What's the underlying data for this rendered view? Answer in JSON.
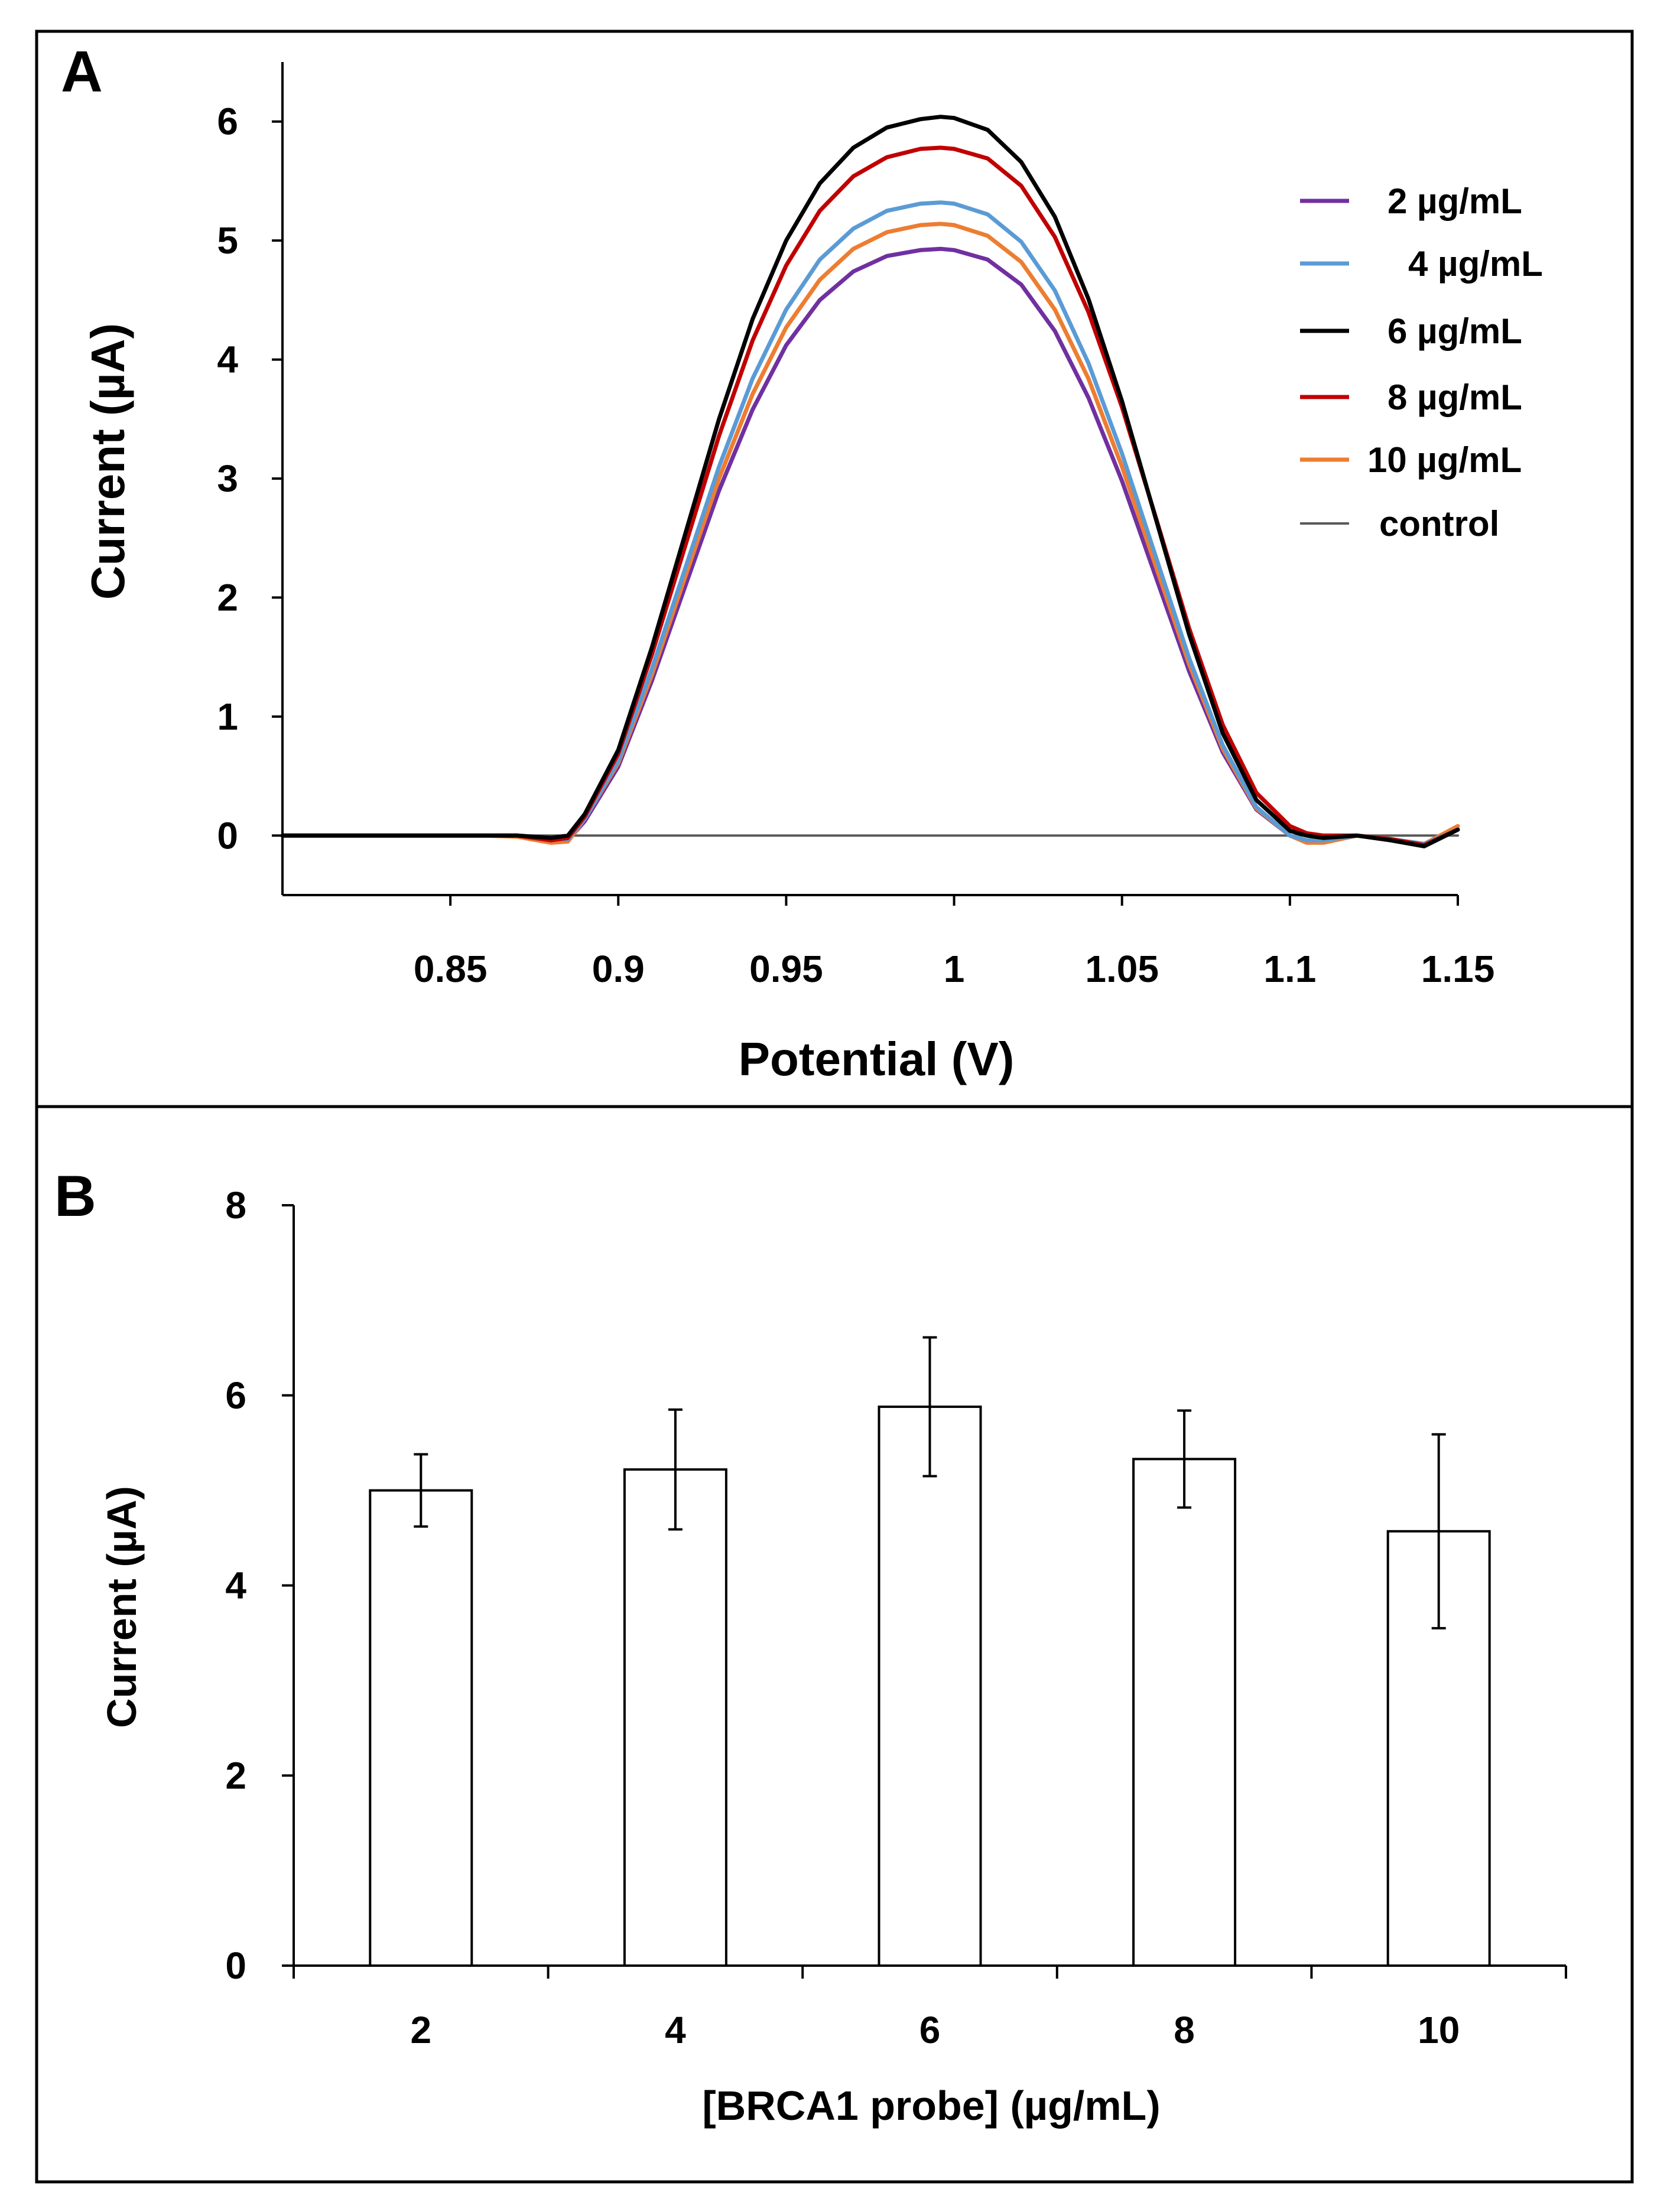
{
  "panel_labels": {
    "a": "A",
    "b": "B"
  },
  "colors": {
    "s2": "#7030a0",
    "s4": "#5b9bd5",
    "s6": "#000000",
    "s8": "#c00000",
    "s10": "#ed7d31",
    "control": "#595959"
  },
  "chart_data": [
    {
      "type": "line",
      "panel": "A",
      "title": "",
      "xlabel": "Potential (V)",
      "ylabel": "Current (µA)",
      "xlim": [
        0.8,
        1.15
      ],
      "ylim": [
        -0.5,
        6.5
      ],
      "xticks": [
        0.85,
        0.9,
        0.95,
        1,
        1.05,
        1.1,
        1.15
      ],
      "xtick_labels": [
        "0.85",
        "0.9",
        "0.95",
        "1",
        "1.05",
        "1.1",
        "1.15"
      ],
      "yticks": [
        0,
        1,
        2,
        3,
        4,
        5,
        6
      ],
      "ytick_labels": [
        "0",
        "1",
        "2",
        "3",
        "4",
        "5",
        "6"
      ],
      "legend_position": "top-right",
      "series": [
        {
          "name": "2 µg/mL",
          "color_key": "s2",
          "peak": 4.93,
          "center": 0.996,
          "points": [
            [
              0.8,
              0
            ],
            [
              0.86,
              0
            ],
            [
              0.87,
              0
            ],
            [
              0.88,
              -0.05
            ],
            [
              0.885,
              -0.04
            ],
            [
              0.89,
              0.12
            ],
            [
              0.9,
              0.58
            ],
            [
              0.91,
              1.3
            ],
            [
              0.92,
              2.1
            ],
            [
              0.93,
              2.9
            ],
            [
              0.94,
              3.58
            ],
            [
              0.95,
              4.12
            ],
            [
              0.96,
              4.5
            ],
            [
              0.97,
              4.74
            ],
            [
              0.98,
              4.87
            ],
            [
              0.99,
              4.92
            ],
            [
              0.996,
              4.93
            ],
            [
              1.0,
              4.92
            ],
            [
              1.01,
              4.84
            ],
            [
              1.02,
              4.63
            ],
            [
              1.03,
              4.24
            ],
            [
              1.04,
              3.68
            ],
            [
              1.05,
              2.98
            ],
            [
              1.06,
              2.18
            ],
            [
              1.07,
              1.38
            ],
            [
              1.08,
              0.7
            ],
            [
              1.09,
              0.22
            ],
            [
              1.1,
              0.0
            ],
            [
              1.105,
              -0.05
            ],
            [
              1.11,
              -0.05
            ],
            [
              1.12,
              0.0
            ],
            [
              1.13,
              -0.03
            ],
            [
              1.14,
              -0.08
            ],
            [
              1.15,
              0.05
            ]
          ]
        },
        {
          "name": "4 µg/mL",
          "color_key": "s4",
          "peak": 5.32,
          "center": 0.996,
          "points": [
            [
              0.8,
              0
            ],
            [
              0.86,
              0
            ],
            [
              0.87,
              0
            ],
            [
              0.88,
              -0.04
            ],
            [
              0.885,
              -0.03
            ],
            [
              0.89,
              0.14
            ],
            [
              0.9,
              0.63
            ],
            [
              0.91,
              1.4
            ],
            [
              0.92,
              2.25
            ],
            [
              0.93,
              3.1
            ],
            [
              0.94,
              3.84
            ],
            [
              0.95,
              4.42
            ],
            [
              0.96,
              4.84
            ],
            [
              0.97,
              5.1
            ],
            [
              0.98,
              5.25
            ],
            [
              0.99,
              5.31
            ],
            [
              0.996,
              5.32
            ],
            [
              1.0,
              5.31
            ],
            [
              1.01,
              5.22
            ],
            [
              1.02,
              4.99
            ],
            [
              1.03,
              4.58
            ],
            [
              1.04,
              3.97
            ],
            [
              1.05,
              3.21
            ],
            [
              1.06,
              2.35
            ],
            [
              1.07,
              1.49
            ],
            [
              1.08,
              0.76
            ],
            [
              1.09,
              0.24
            ],
            [
              1.1,
              0.0
            ],
            [
              1.105,
              -0.04
            ],
            [
              1.11,
              -0.04
            ],
            [
              1.12,
              0.0
            ],
            [
              1.13,
              -0.03
            ],
            [
              1.14,
              -0.07
            ],
            [
              1.15,
              0.05
            ]
          ]
        },
        {
          "name": "6 µg/mL",
          "color_key": "s6",
          "peak": 6.04,
          "center": 0.996,
          "points": [
            [
              0.8,
              0
            ],
            [
              0.86,
              0
            ],
            [
              0.87,
              0
            ],
            [
              0.88,
              -0.02
            ],
            [
              0.885,
              0.0
            ],
            [
              0.89,
              0.18
            ],
            [
              0.9,
              0.72
            ],
            [
              0.91,
              1.58
            ],
            [
              0.92,
              2.54
            ],
            [
              0.93,
              3.5
            ],
            [
              0.94,
              4.34
            ],
            [
              0.95,
              5.0
            ],
            [
              0.96,
              5.48
            ],
            [
              0.97,
              5.78
            ],
            [
              0.98,
              5.95
            ],
            [
              0.99,
              6.02
            ],
            [
              0.996,
              6.04
            ],
            [
              1.0,
              6.03
            ],
            [
              1.01,
              5.93
            ],
            [
              1.02,
              5.66
            ],
            [
              1.03,
              5.2
            ],
            [
              1.04,
              4.51
            ],
            [
              1.05,
              3.65
            ],
            [
              1.06,
              2.67
            ],
            [
              1.07,
              1.69
            ],
            [
              1.08,
              0.86
            ],
            [
              1.09,
              0.3
            ],
            [
              1.1,
              0.04
            ],
            [
              1.105,
              0.0
            ],
            [
              1.11,
              -0.02
            ],
            [
              1.12,
              0.0
            ],
            [
              1.13,
              -0.04
            ],
            [
              1.14,
              -0.09
            ],
            [
              1.15,
              0.05
            ]
          ]
        },
        {
          "name": "8 µg/mL",
          "color_key": "s8",
          "peak": 5.78,
          "center": 0.996,
          "points": [
            [
              0.8,
              0
            ],
            [
              0.86,
              0
            ],
            [
              0.87,
              0
            ],
            [
              0.88,
              -0.04
            ],
            [
              0.885,
              -0.02
            ],
            [
              0.89,
              0.16
            ],
            [
              0.9,
              0.69
            ],
            [
              0.91,
              1.52
            ],
            [
              0.92,
              2.44
            ],
            [
              0.93,
              3.36
            ],
            [
              0.94,
              4.16
            ],
            [
              0.95,
              4.79
            ],
            [
              0.96,
              5.25
            ],
            [
              0.97,
              5.54
            ],
            [
              0.98,
              5.7
            ],
            [
              0.99,
              5.77
            ],
            [
              0.996,
              5.78
            ],
            [
              1.0,
              5.77
            ],
            [
              1.01,
              5.69
            ],
            [
              1.02,
              5.46
            ],
            [
              1.03,
              5.03
            ],
            [
              1.04,
              4.4
            ],
            [
              1.05,
              3.6
            ],
            [
              1.06,
              2.68
            ],
            [
              1.07,
              1.74
            ],
            [
              1.08,
              0.93
            ],
            [
              1.09,
              0.36
            ],
            [
              1.1,
              0.08
            ],
            [
              1.105,
              0.02
            ],
            [
              1.11,
              0.0
            ],
            [
              1.12,
              0.0
            ],
            [
              1.13,
              -0.03
            ],
            [
              1.14,
              -0.08
            ],
            [
              1.15,
              0.05
            ]
          ]
        },
        {
          "name": "10 µg/mL",
          "color_key": "s10",
          "peak": 5.14,
          "center": 0.996,
          "points": [
            [
              0.8,
              0
            ],
            [
              0.86,
              0
            ],
            [
              0.87,
              -0.01
            ],
            [
              0.88,
              -0.06
            ],
            [
              0.885,
              -0.05
            ],
            [
              0.89,
              0.14
            ],
            [
              0.9,
              0.61
            ],
            [
              0.91,
              1.35
            ],
            [
              0.92,
              2.18
            ],
            [
              0.93,
              3.0
            ],
            [
              0.94,
              3.71
            ],
            [
              0.95,
              4.27
            ],
            [
              0.96,
              4.67
            ],
            [
              0.97,
              4.93
            ],
            [
              0.98,
              5.07
            ],
            [
              0.99,
              5.13
            ],
            [
              0.996,
              5.14
            ],
            [
              1.0,
              5.13
            ],
            [
              1.01,
              5.04
            ],
            [
              1.02,
              4.82
            ],
            [
              1.03,
              4.42
            ],
            [
              1.04,
              3.84
            ],
            [
              1.05,
              3.1
            ],
            [
              1.06,
              2.27
            ],
            [
              1.07,
              1.44
            ],
            [
              1.08,
              0.73
            ],
            [
              1.09,
              0.23
            ],
            [
              1.1,
              0.0
            ],
            [
              1.105,
              -0.06
            ],
            [
              1.11,
              -0.06
            ],
            [
              1.12,
              0.0
            ],
            [
              1.13,
              -0.03
            ],
            [
              1.14,
              -0.07
            ],
            [
              1.15,
              0.08
            ]
          ]
        },
        {
          "name": "control",
          "color_key": "control",
          "points": [
            [
              0.8,
              0
            ],
            [
              1.15,
              0
            ]
          ]
        }
      ]
    },
    {
      "type": "bar",
      "panel": "B",
      "title": "",
      "xlabel": "[BRCA1 probe] (µg/mL)",
      "ylabel": "Current (µA)",
      "categories": [
        "2",
        "4",
        "6",
        "8",
        "10"
      ],
      "values": [
        5.0,
        5.22,
        5.88,
        5.33,
        4.57
      ],
      "errors": [
        0.38,
        0.63,
        0.73,
        0.51,
        1.02
      ],
      "ylim": [
        0,
        8
      ],
      "yticks": [
        0,
        2,
        4,
        6,
        8
      ],
      "ytick_labels": [
        "0",
        "2",
        "4",
        "6",
        "8"
      ]
    }
  ]
}
